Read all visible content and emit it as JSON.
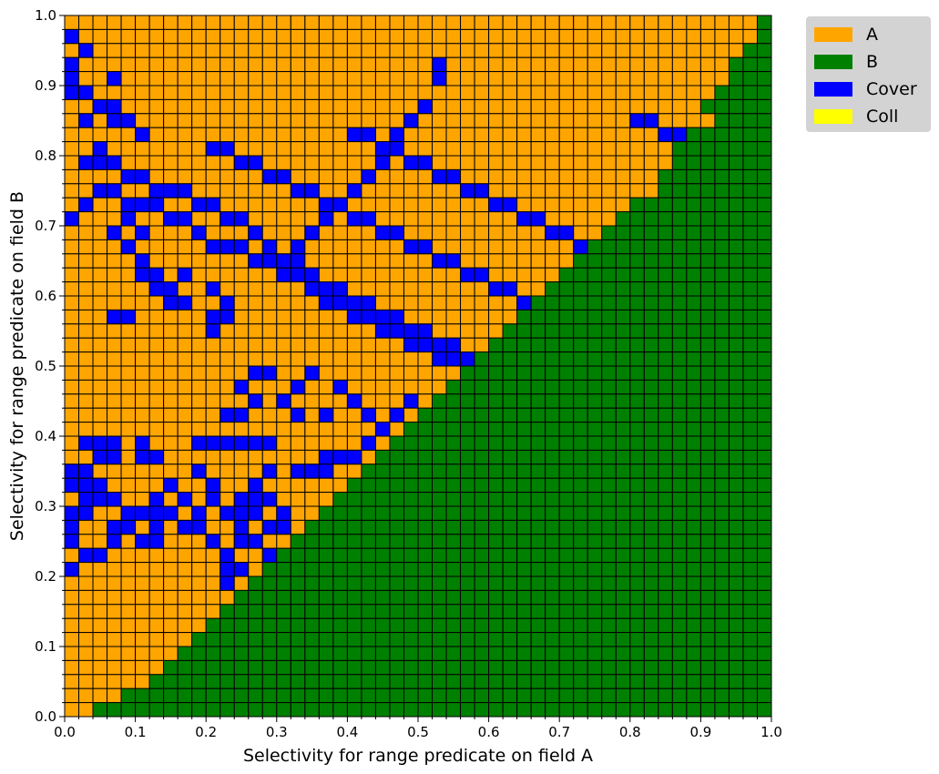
{
  "chart_data": {
    "type": "heatmap",
    "grid_size": 50,
    "cell_step": 0.02,
    "xlabel": "Selectivity for range predicate on field A",
    "ylabel": "Selectivity for range predicate on field B",
    "xlim": [
      0.0,
      1.0
    ],
    "ylim": [
      0.0,
      1.0
    ],
    "x_ticks": [
      "0.0",
      "0.1",
      "0.2",
      "0.3",
      "0.4",
      "0.5",
      "0.6",
      "0.7",
      "0.8",
      "0.9",
      "1.0"
    ],
    "y_ticks": [
      "0.0",
      "0.1",
      "0.2",
      "0.3",
      "0.4",
      "0.5",
      "0.6",
      "0.7",
      "0.8",
      "0.9",
      "1.0"
    ],
    "legend_position": "outside upper-right",
    "categories": [
      {
        "code": "A",
        "label": "A",
        "color": "#ffa500"
      },
      {
        "code": "B",
        "label": "B",
        "color": "#008000"
      },
      {
        "code": "C",
        "label": "Cover",
        "color": "#0000ff"
      },
      {
        "code": "L",
        "label": "Coll",
        "color": "#ffff00"
      }
    ],
    "cells_rows_top_to_bottom": [
      "AAAAAAAAAAAAAAAAAAAAAAAAAAAAAAAAAAAAAAAAAAAAAAAAAB",
      "AAAAAAAAAAAAAAAAAAAAAAAAAAAAAAAAAAAAAAAAAAAAAAAAAB",
      "AAAAAAAAAAAAAAAAAAAAAAAAAAAAAAAAAAAAAAAAAAAAAAAABB",
      "AAAAAAAAAAAAAAAAAAAAAAAAAAAAAAAAAAAAAAAAAAAAAAABBB",
      "AAAAAAAAAAAAAAAAAAAAAAAAAAAAAAAAAAAAAAAAAAAAAAABBB",
      "AAAAAAAAAAAAAAAAAAAAAAAAAAAAAAAAAAAAAAAAAAAAAABBBB",
      "AAAAAAAAAAAAAAAAAAAAAAAAAAAAAAAAAAAAAAAAAAAAABBBBB",
      "AAAAAAAAAAAAAAAAAAAAAAAAAAAAAAAAAAAAAAAAAAAAAABBBB",
      "AAAAAAAAAAAAAAAAAAAAAAAAAAAAAAAAAAAAAAAAAAAABBBBBB",
      "AAAAAAAAAAAAAAAAAAAAAAAAAAAAAAAAAAAAAAAAAAABBBBBBB",
      "AAAAAAAAAAAAAAAAAAAAAAAAAAAAAAAAAAAAAAAAAAABBBBBBB",
      "AAAAAAAAAAAAAAAAAAAAAAAAAAAAAAAAAAAAAAAAAABBBBBBBB",
      "AAAAAAAAAAAAAAAAAAAAAAAAAAAAAAAAAAAAAAAAAABBBBBBBB",
      "AAAAAAAAAAAAAAAAAAAAAAAAAAAAAAAAAAAAAAAABBBBBBBBBB",
      "AAAAAAAAAAAAAAAAAAAAAAAAAAAAAAAAAAAAAAABBBBBBBBBBB",
      "AAAAAAAAAAAAAAAAAAAAAAAAAAAAAAAAAAAAAABBBBBBBBBBBB",
      "AAAAAAAAAAAAAAAAAAAAAAAAAAAAAAAAAAAAABBBBBBBBBBBBB",
      "AAAAAAAAAAAAAAAAAAAAAAAAAAAAAAAAAAAABBBBBBBBBBBBBB",
      "AAAAAAAAAAAAAAAAAAAAAAAAAAAAAAAAAAABBBBBBBBBBBBBBB",
      "AAAAAAAAAAAAAAAAAAAAAAAAAAAAAAAAAABBBBBBBBBBBBBBBB",
      "AAAAAAAAAAAAAAAAAAAAAAAAAAAAAAAAABBBBBBBBBBBBBBBBB",
      "AAAAAAAAAAAAAAAAAAAAAAAAAAAAAAAABBBBBBBBBBBBBBBBBB",
      "AAAAAAAAAAAAAAAAAAAAAAAAAAAAAAABBBBBBBBBBBBBBBBBBB",
      "AAAAAAAAAAAAAAAAAAAAAAAAAAAAAABBBBBBBBBBBBBBBBBBBB",
      "AAAAAAAAAAAAAAAAAAAAAAAAAAAAABBBBBBBBBBBBBBBBBBBBB",
      "AAAAAAAAAAAAAAAAAAAAAAAAAAAABBBBBBBBBBBBBBBBBBBBBB",
      "AAAAAAAAAAAAAAAAAAAAAAAAAAABBBBBBBBBBBBBBBBBBBBBBB",
      "AAAAAAAAAAAAAAAAAAAAAAAAAABBBBBBBBBBBBBBBBBBBBBBBB",
      "AAAAAAAAAAAAAAAAAAAAAAAAABBBBBBBBBBBBBBBBBBBBBBBBB",
      "AAAAAAAAAAAAAAAAAAAAAAAABBBBBBBBBBBBBBBBBBBBBBBBBB",
      "AAAAAAAAAAAAAAAAAAAAAAABBBBBBBBBBBBBBBBBBBBBBBBBBB",
      "AAAAAAAAAAAAAAAAAAAAAABBBBBBBBBBBBBBBBBBBBBBBBBBBB",
      "AAAAAAAAAAAAAAAAAAAAABBBBBBBBBBBBBBBBBBBBBBBBBBBBB",
      "AAAAAAAAAAAAAAAAAAAABBBBBBBBBBBBBBBBBBBBBBBBBBBBBB",
      "AAAAAAAAAAAAAAAAAAABBBBBBBBBBBBBBBBBBBBBBBBBBBBBBB",
      "AAAAAAAAAAAAAAAAAABBBBBBBBBBBBBBBBBBBBBBBBBBBBBBBB",
      "AAAAAAAAAAAAAAAAABBBBBBBBBBBBBBBBBBBBBBBBBBBBBBBBB",
      "AAAAAAAAAAAAAAAABBBBBBBBBBBBBBBBBBBBBBBBBBBBBBBBBB",
      "AAAAAAAAAAAAAAABBBBBBBBBBBBBBBBBBBBBBBBBBBBBBBBBBB",
      "AAAAAAAAAAAAAABBBBBBBBBBBBBBBBBBBBBBBBBBBBBBBBBBBB",
      "AAAAAAAAAAAAABBBBBBBBBBBBBBBBBBBBBBBBBBBBBBBBBBBBB",
      "AAAAAAAAAAAABBBBBBBBBBBBBBBBBBBBBBBBBBBBBBBBBBBBBB",
      "AAAAAAAAAAABBBBBBBBBBBBBBBBBBBBBBBBBBBBBBBBBBBBBBB",
      "AAAAAAAAAABBBBBBBBBBBBBBBBBBBBBBBBBBBBBBBBBBBBBBBB",
      "AAAAAAAAABBBBBBBBBBBBBBBBBBBBBBBBBBBBBBBBBBBBBBBBB",
      "AAAAAAAABBBBBBBBBBBBBBBBBBBBBBBBBBBBBBBBBBBBBBBBBB",
      "AAAAAAABBBBBBBBBBBBBBBBBBBBBBBBBBBBBBBBBBBBBBBBBBB",
      "AAAAAABBBBBBBBBBBBBBBBBBBBBBBBBBBBBBBBBBBBBBBBBBBB",
      "AAAABBBBBBBBBBBBBBBBBBBBBBBBBBBBBBBBBBBBBBBBBBBBBB",
      "AABBBBBBBBBBBBBBBBBBBBBBBBBBBBBBBBBBBBBBBBBBBBBBBB"
    ],
    "cover_cells": [
      [
        0,
        1
      ],
      [
        1,
        2
      ],
      [
        0,
        3
      ],
      [
        3,
        4
      ],
      [
        0,
        4
      ],
      [
        1,
        5
      ],
      [
        0,
        5
      ],
      [
        2,
        6
      ],
      [
        3,
        6
      ],
      [
        3,
        7
      ],
      [
        4,
        7
      ],
      [
        1,
        7
      ],
      [
        5,
        8
      ],
      [
        2,
        9
      ],
      [
        0,
        14
      ],
      [
        4,
        14
      ],
      [
        3,
        15
      ],
      [
        5,
        15
      ],
      [
        4,
        16
      ],
      [
        5,
        17
      ],
      [
        5,
        18
      ],
      [
        6,
        18
      ],
      [
        8,
        18
      ],
      [
        10,
        21
      ],
      [
        11,
        21
      ],
      [
        10,
        19
      ],
      [
        11,
        20
      ],
      [
        3,
        21
      ],
      [
        4,
        21
      ],
      [
        7,
        20
      ],
      [
        6,
        19
      ],
      [
        7,
        19
      ],
      [
        10,
        22
      ],
      [
        8,
        20
      ],
      [
        0,
        32
      ],
      [
        0,
        33
      ],
      [
        1,
        32
      ],
      [
        1,
        33
      ],
      [
        2,
        33
      ],
      [
        2,
        34
      ],
      [
        3,
        34
      ],
      [
        1,
        34
      ],
      [
        1,
        35
      ],
      [
        0,
        35
      ],
      [
        0,
        36
      ],
      [
        0,
        37
      ],
      [
        1,
        38
      ],
      [
        0,
        39
      ],
      [
        2,
        38
      ],
      [
        3,
        37
      ],
      [
        4,
        35
      ],
      [
        5,
        35
      ],
      [
        3,
        36
      ],
      [
        4,
        36
      ],
      [
        5,
        37
      ],
      [
        6,
        37
      ],
      [
        6,
        36
      ],
      [
        6,
        35
      ],
      [
        7,
        35
      ],
      [
        6,
        34
      ],
      [
        8,
        34
      ],
      [
        8,
        36
      ],
      [
        9,
        36
      ],
      [
        10,
        37
      ],
      [
        9,
        35
      ],
      [
        7,
        33
      ],
      [
        9,
        32
      ],
      [
        10,
        33
      ],
      [
        10,
        34
      ],
      [
        12,
        36
      ],
      [
        13,
        37
      ],
      [
        14,
        38
      ],
      [
        15,
        38
      ],
      [
        16,
        37
      ],
      [
        17,
        36
      ],
      [
        12,
        35
      ],
      [
        13,
        34
      ],
      [
        14,
        34
      ],
      [
        15,
        35
      ],
      [
        13,
        33
      ],
      [
        14,
        32
      ],
      [
        11,
        35
      ],
      [
        12,
        34
      ],
      [
        13,
        35
      ],
      [
        12,
        37
      ],
      [
        11,
        38
      ],
      [
        14,
        36
      ],
      [
        15,
        36
      ],
      [
        11,
        39
      ],
      [
        12,
        39
      ],
      [
        11,
        40
      ],
      [
        12,
        41
      ],
      [
        12,
        42
      ],
      [
        13,
        42
      ],
      [
        14,
        41
      ],
      [
        15,
        41
      ],
      [
        16,
        40
      ],
      [
        17,
        39
      ],
      [
        17,
        44
      ],
      [
        18,
        44
      ],
      [
        19,
        44
      ],
      [
        20,
        44
      ],
      [
        21,
        44
      ],
      [
        22,
        44
      ],
      [
        23,
        44
      ],
      [
        24,
        44
      ],
      [
        25,
        44
      ],
      [
        26,
        44
      ],
      [
        27,
        44
      ],
      [
        28,
        44
      ],
      [
        28,
        40
      ],
      [
        29,
        40
      ],
      [
        30,
        40
      ],
      [
        31,
        40
      ],
      [
        32,
        40
      ],
      [
        33,
        40
      ],
      [
        34,
        40
      ],
      [
        35,
        40
      ],
      [
        36,
        40
      ],
      [
        37,
        40
      ],
      [
        38,
        40
      ],
      [
        39,
        40
      ],
      [
        40,
        40
      ],
      [
        3,
        30
      ],
      [
        2,
        30
      ],
      [
        1,
        30
      ],
      [
        2,
        31
      ],
      [
        3,
        31
      ],
      [
        5,
        30
      ],
      [
        5,
        31
      ],
      [
        6,
        31
      ],
      [
        9,
        30
      ],
      [
        10,
        30
      ],
      [
        11,
        30
      ],
      [
        12,
        30
      ],
      [
        13,
        30
      ],
      [
        14,
        30
      ],
      [
        16,
        32
      ],
      [
        17,
        32
      ],
      [
        18,
        32
      ],
      [
        18,
        31
      ],
      [
        19,
        31
      ],
      [
        20,
        31
      ],
      [
        21,
        30
      ],
      [
        22,
        31
      ],
      [
        23,
        32
      ],
      [
        24,
        30
      ],
      [
        25,
        31
      ],
      [
        26,
        32
      ],
      [
        27,
        31
      ],
      [
        28,
        33
      ],
      [
        29,
        34
      ],
      [
        30,
        33
      ],
      [
        31,
        32
      ],
      [
        32,
        32
      ],
      [
        33,
        31
      ],
      [
        34,
        30
      ],
      [
        35,
        33
      ],
      [
        36,
        34
      ],
      [
        37,
        33
      ],
      [
        38,
        32
      ],
      [
        39,
        32
      ],
      [
        40,
        31
      ],
      [
        13,
        25
      ],
      [
        14,
        25
      ],
      [
        12,
        26
      ],
      [
        13,
        27
      ],
      [
        11,
        28
      ],
      [
        12,
        28
      ],
      [
        15,
        27
      ],
      [
        16,
        28
      ],
      [
        16,
        26
      ],
      [
        17,
        25
      ],
      [
        18,
        28
      ],
      [
        19,
        26
      ],
      [
        20,
        27
      ],
      [
        21,
        28
      ],
      [
        22,
        29
      ],
      [
        23,
        28
      ],
      [
        24,
        27
      ],
      [
        25,
        28
      ],
      [
        26,
        29
      ],
      [
        27,
        28
      ],
      [
        28,
        27
      ],
      [
        29,
        26
      ],
      [
        30,
        25
      ],
      [
        31,
        25
      ],
      [
        32,
        25
      ],
      [
        33,
        25
      ],
      [
        34,
        26
      ],
      [
        35,
        27
      ],
      [
        36,
        27
      ],
      [
        37,
        26
      ],
      [
        38,
        26
      ],
      [
        39,
        27
      ],
      [
        40,
        28
      ],
      [
        41,
        29
      ],
      [
        1,
        13
      ],
      [
        2,
        12
      ],
      [
        3,
        12
      ],
      [
        4,
        13
      ],
      [
        5,
        13
      ],
      [
        6,
        13
      ],
      [
        7,
        14
      ],
      [
        8,
        14
      ],
      [
        9,
        15
      ],
      [
        10,
        16
      ],
      [
        11,
        16
      ],
      [
        12,
        16
      ],
      [
        13,
        17
      ],
      [
        14,
        17
      ],
      [
        15,
        18
      ],
      [
        16,
        18
      ],
      [
        17,
        19
      ],
      [
        18,
        20
      ],
      [
        19,
        20
      ],
      [
        20,
        21
      ],
      [
        21,
        21
      ],
      [
        22,
        22
      ],
      [
        23,
        22
      ],
      [
        24,
        23
      ],
      [
        25,
        23
      ],
      [
        26,
        24
      ],
      [
        27,
        24
      ],
      [
        1,
        10
      ],
      [
        2,
        10
      ],
      [
        3,
        10
      ],
      [
        4,
        11
      ],
      [
        5,
        11
      ],
      [
        6,
        12
      ],
      [
        7,
        12
      ],
      [
        8,
        12
      ],
      [
        9,
        13
      ],
      [
        10,
        13
      ],
      [
        11,
        14
      ],
      [
        12,
        14
      ],
      [
        13,
        15
      ],
      [
        14,
        16
      ],
      [
        15,
        17
      ],
      [
        16,
        17
      ],
      [
        17,
        18
      ],
      [
        18,
        19
      ],
      [
        19,
        19
      ],
      [
        20,
        20
      ],
      [
        21,
        20
      ],
      [
        22,
        21
      ],
      [
        23,
        21
      ],
      [
        24,
        22
      ],
      [
        25,
        22
      ],
      [
        26,
        23
      ],
      [
        27,
        23
      ],
      [
        28,
        24
      ],
      [
        29,
        24
      ],
      [
        30,
        24
      ],
      [
        10,
        9
      ],
      [
        11,
        9
      ],
      [
        12,
        10
      ],
      [
        13,
        10
      ],
      [
        14,
        11
      ],
      [
        15,
        11
      ],
      [
        16,
        12
      ],
      [
        17,
        12
      ],
      [
        18,
        13
      ],
      [
        19,
        13
      ],
      [
        20,
        14
      ],
      [
        21,
        14
      ],
      [
        22,
        15
      ],
      [
        23,
        15
      ],
      [
        24,
        16
      ],
      [
        25,
        16
      ],
      [
        26,
        17
      ],
      [
        27,
        17
      ],
      [
        28,
        18
      ],
      [
        29,
        18
      ],
      [
        30,
        19
      ],
      [
        31,
        19
      ],
      [
        32,
        20
      ],
      [
        33,
        20
      ],
      [
        34,
        21
      ],
      [
        35,
        21
      ],
      [
        36,
        22
      ],
      [
        37,
        22
      ],
      [
        20,
        8
      ],
      [
        21,
        8
      ],
      [
        22,
        9
      ],
      [
        23,
        9
      ],
      [
        24,
        10
      ],
      [
        25,
        10
      ],
      [
        26,
        11
      ],
      [
        27,
        11
      ],
      [
        28,
        12
      ],
      [
        29,
        12
      ],
      [
        30,
        13
      ],
      [
        31,
        13
      ],
      [
        32,
        14
      ],
      [
        33,
        14
      ],
      [
        34,
        15
      ],
      [
        35,
        15
      ],
      [
        36,
        16
      ],
      [
        37,
        16
      ],
      [
        38,
        17
      ],
      [
        39,
        17
      ],
      [
        40,
        18
      ],
      [
        41,
        18
      ],
      [
        42,
        19
      ],
      [
        43,
        19
      ],
      [
        44,
        20
      ],
      [
        45,
        20
      ],
      [
        26,
        3
      ],
      [
        26,
        4
      ],
      [
        25,
        6
      ],
      [
        24,
        7
      ],
      [
        23,
        8
      ],
      [
        22,
        10
      ],
      [
        21,
        11
      ],
      [
        20,
        12
      ],
      [
        19,
        13
      ],
      [
        18,
        14
      ],
      [
        17,
        15
      ],
      [
        16,
        16
      ],
      [
        15,
        17
      ],
      [
        40,
        7
      ],
      [
        41,
        7
      ],
      [
        42,
        8
      ],
      [
        43,
        8
      ],
      [
        44,
        9
      ],
      [
        45,
        9
      ],
      [
        46,
        10
      ],
      [
        47,
        10
      ],
      [
        48,
        11
      ],
      [
        49,
        11
      ]
    ]
  },
  "legend": {
    "items": [
      {
        "label": "A",
        "color": "#ffa500"
      },
      {
        "label": "B",
        "color": "#008000"
      },
      {
        "label": "Cover",
        "color": "#0000ff"
      },
      {
        "label": "Coll",
        "color": "#ffff00"
      }
    ]
  }
}
